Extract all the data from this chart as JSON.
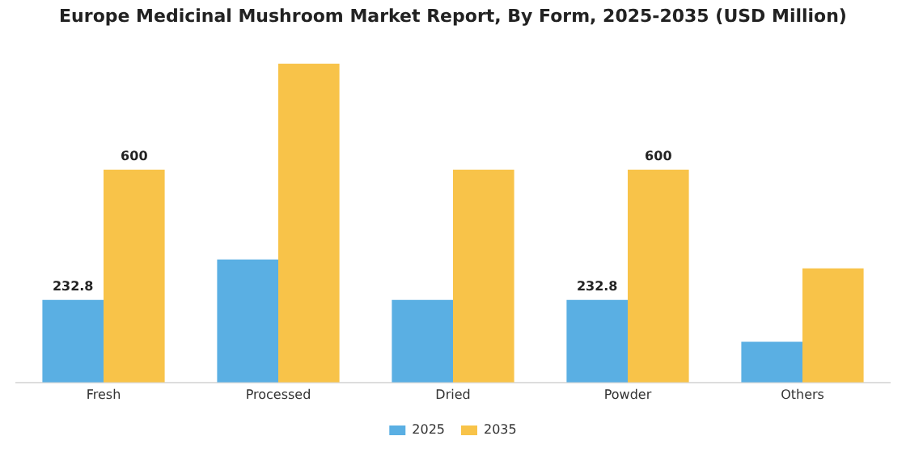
{
  "chart_data": {
    "type": "bar",
    "title": "Europe Medicinal Mushroom Market Report, By Form, 2025-2035 (USD Million)",
    "categories": [
      "Fresh",
      "Processed",
      "Dried",
      "Powder",
      "Others"
    ],
    "series": [
      {
        "name": "2025",
        "color": "#5aafe3",
        "values": [
          232.8,
          347,
          232.8,
          232.8,
          115
        ],
        "value_labels": [
          "232.8",
          null,
          null,
          "232.8",
          null
        ]
      },
      {
        "name": "2035",
        "color": "#f8c349",
        "values": [
          600,
          900,
          600,
          600,
          322
        ],
        "value_labels": [
          "600",
          null,
          null,
          "600",
          null
        ]
      }
    ],
    "ylim": [
      0,
      900
    ],
    "tick_labels": "x",
    "grid": false,
    "legend": "bottom"
  }
}
